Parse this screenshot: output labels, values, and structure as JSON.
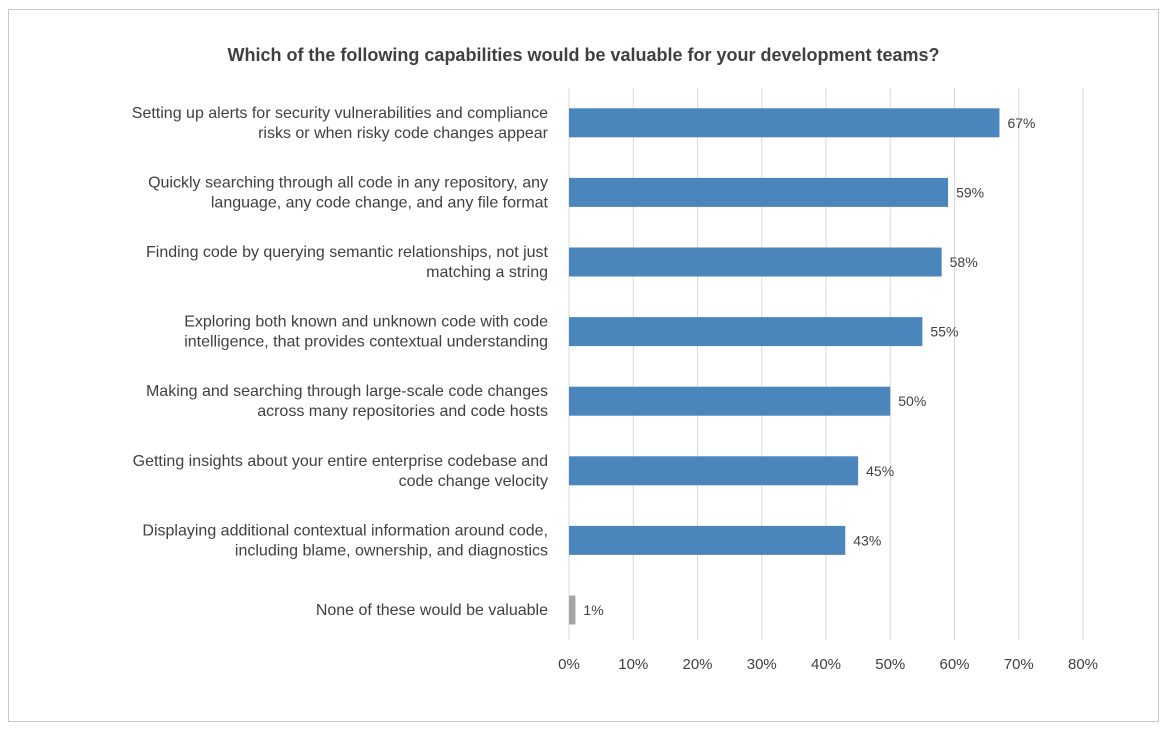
{
  "chart_data": {
    "type": "bar",
    "orientation": "horizontal",
    "title": "Which of the following capabilities would be valuable for your development teams?",
    "categories": [
      [
        "Setting up alerts for security vulnerabilities and compliance",
        "risks or when risky code changes appear"
      ],
      [
        "Quickly searching through all code in any repository, any",
        "language, any code change, and any file format"
      ],
      [
        "Finding code by querying semantic relationships, not just",
        "matching a string"
      ],
      [
        "Exploring both known and unknown code with code",
        "intelligence, that provides contextual understanding"
      ],
      [
        "Making and searching through large-scale code changes",
        "across many repositories and code hosts"
      ],
      [
        "Getting insights about your entire enterprise codebase and",
        "code change velocity"
      ],
      [
        "Displaying additional contextual information around code,",
        "including blame, ownership, and diagnostics"
      ],
      [
        "None of these would be valuable"
      ]
    ],
    "values": [
      67,
      59,
      58,
      55,
      50,
      45,
      43,
      1
    ],
    "value_labels": [
      "67%",
      "59%",
      "58%",
      "55%",
      "50%",
      "45%",
      "43%",
      "1%"
    ],
    "bar_colors": [
      "#4a86bb",
      "#4a86bb",
      "#4a86bb",
      "#4a86bb",
      "#4a86bb",
      "#4a86bb",
      "#4a86bb",
      "#a5a5a5"
    ],
    "xlim": [
      0,
      80
    ],
    "xticks": [
      0,
      10,
      20,
      30,
      40,
      50,
      60,
      70,
      80
    ],
    "xtick_labels": [
      "0%",
      "10%",
      "20%",
      "30%",
      "40%",
      "50%",
      "60%",
      "70%",
      "80%"
    ],
    "grid": true,
    "legend": "none"
  }
}
